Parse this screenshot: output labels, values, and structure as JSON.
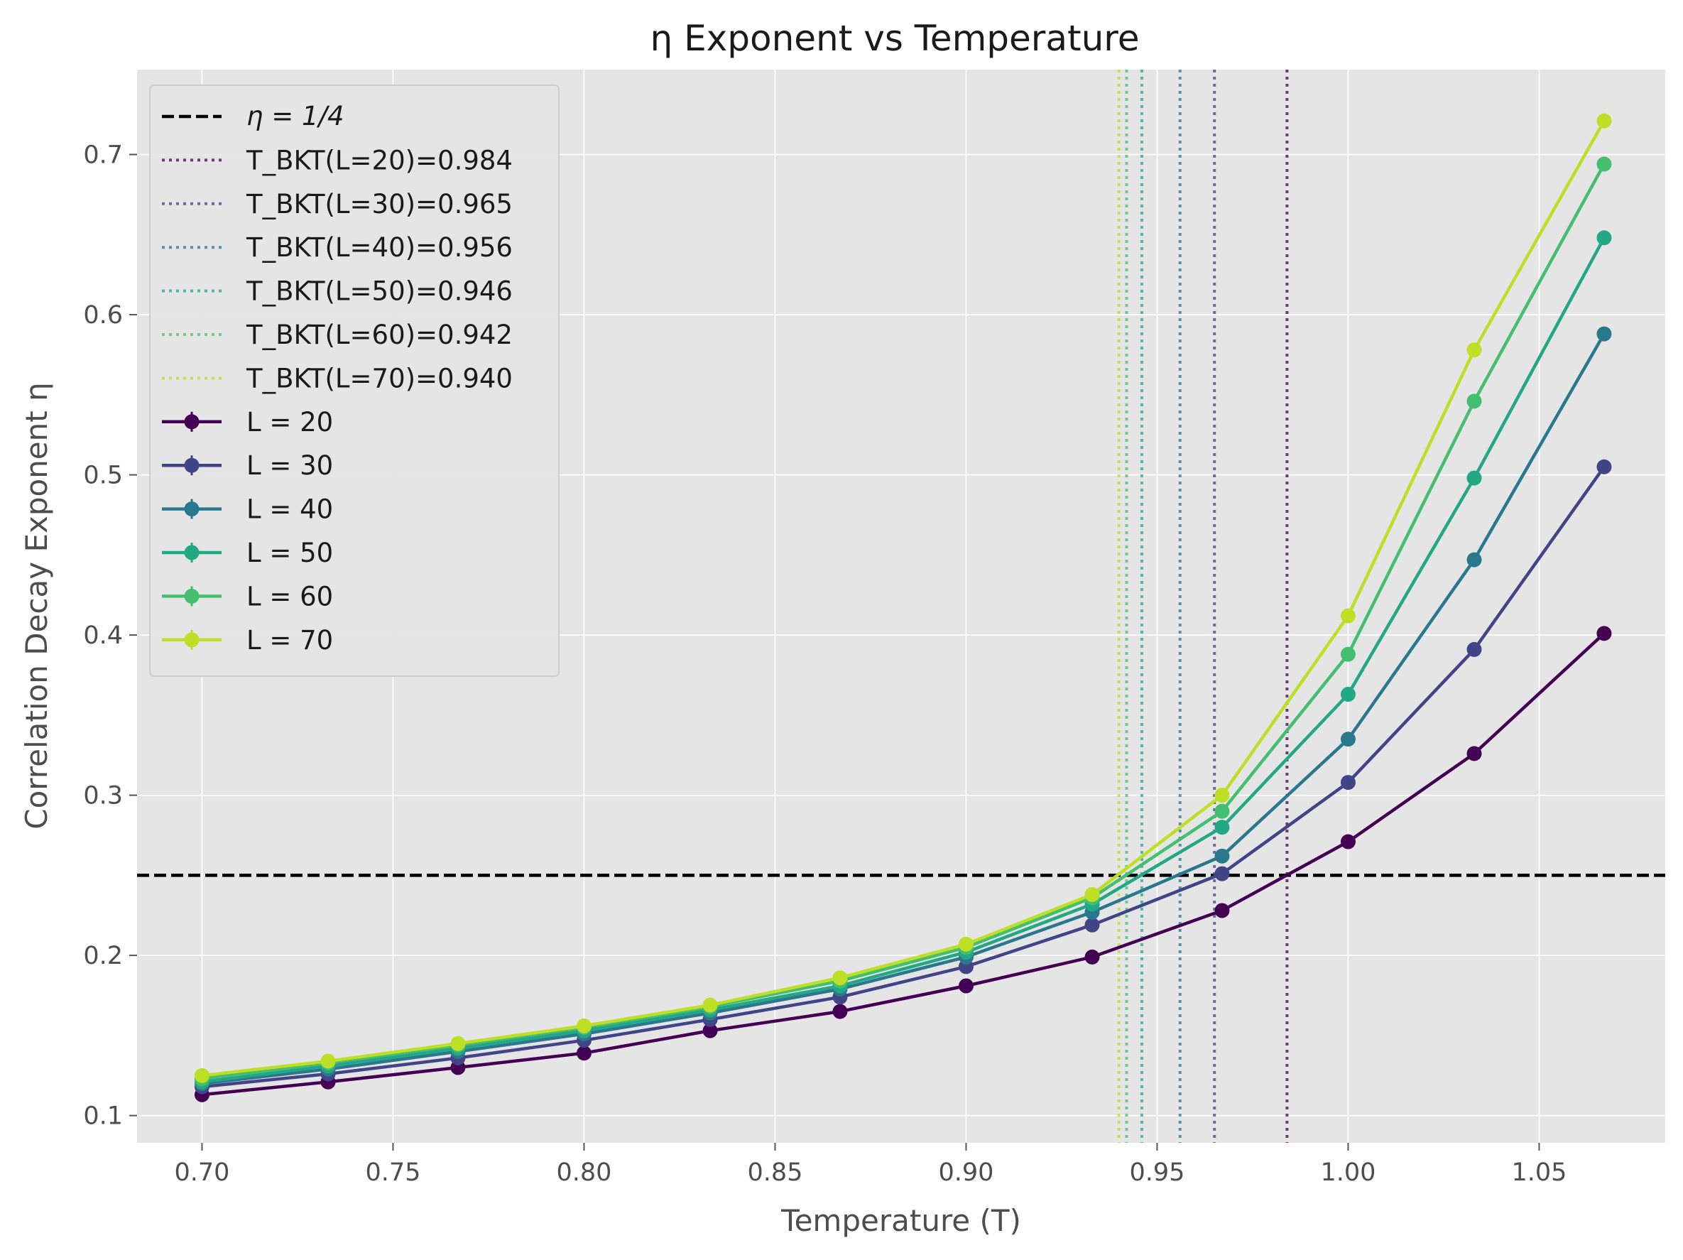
{
  "chart_data": {
    "type": "line",
    "title": "η Exponent vs Temperature",
    "xlabel": "Temperature (T)",
    "ylabel": "Correlation Decay Exponent η",
    "xlim": [
      0.683,
      1.083
    ],
    "ylim": [
      0.083,
      0.753
    ],
    "xticks": [
      0.7,
      0.75,
      0.8,
      0.85,
      0.9,
      0.95,
      1.0,
      1.05
    ],
    "xtick_labels": [
      "0.70",
      "0.75",
      "0.80",
      "0.85",
      "0.90",
      "0.95",
      "1.00",
      "1.05"
    ],
    "yticks": [
      0.1,
      0.2,
      0.3,
      0.4,
      0.5,
      0.6,
      0.7
    ],
    "ytick_labels": [
      "0.1",
      "0.2",
      "0.3",
      "0.4",
      "0.5",
      "0.6",
      "0.7"
    ],
    "grid": true,
    "legend_position": "top-left",
    "background": "#e5e5e5",
    "x": [
      0.7,
      0.733,
      0.767,
      0.8,
      0.833,
      0.867,
      0.9,
      0.933,
      0.967,
      1.0,
      1.033,
      1.067
    ],
    "series": [
      {
        "name": "L = 20",
        "color": "#440154",
        "values": [
          0.113,
          0.121,
          0.13,
          0.139,
          0.153,
          0.165,
          0.181,
          0.199,
          0.228,
          0.271,
          0.326,
          0.401
        ]
      },
      {
        "name": "L = 30",
        "color": "#414487",
        "values": [
          0.118,
          0.126,
          0.136,
          0.147,
          0.16,
          0.174,
          0.193,
          0.219,
          0.251,
          0.308,
          0.391,
          0.505
        ]
      },
      {
        "name": "L = 40",
        "color": "#2a788e",
        "values": [
          0.12,
          0.129,
          0.14,
          0.151,
          0.164,
          0.179,
          0.199,
          0.227,
          0.262,
          0.335,
          0.447,
          0.588
        ]
      },
      {
        "name": "L = 50",
        "color": "#22a884",
        "values": [
          0.121,
          0.131,
          0.142,
          0.153,
          0.166,
          0.181,
          0.202,
          0.232,
          0.28,
          0.363,
          0.498,
          0.648
        ]
      },
      {
        "name": "L = 60",
        "color": "#44bf70",
        "values": [
          0.123,
          0.133,
          0.144,
          0.155,
          0.168,
          0.184,
          0.205,
          0.236,
          0.29,
          0.388,
          0.546,
          0.694
        ]
      },
      {
        "name": "L = 70",
        "color": "#bddf26",
        "values": [
          0.125,
          0.134,
          0.145,
          0.156,
          0.169,
          0.186,
          0.207,
          0.238,
          0.3,
          0.412,
          0.578,
          0.721
        ]
      }
    ],
    "reference_lines": [
      {
        "name": "T_BKT(L=20)=0.984",
        "orientation": "vertical",
        "x": 0.984,
        "color": "#440154",
        "style": "dotted"
      },
      {
        "name": "T_BKT(L=30)=0.965",
        "orientation": "vertical",
        "x": 0.965,
        "color": "#414487",
        "style": "dotted"
      },
      {
        "name": "T_BKT(L=40)=0.956",
        "orientation": "vertical",
        "x": 0.956,
        "color": "#2a788e",
        "style": "dotted"
      },
      {
        "name": "T_BKT(L=50)=0.946",
        "orientation": "vertical",
        "x": 0.946,
        "color": "#22a884",
        "style": "dotted"
      },
      {
        "name": "T_BKT(L=60)=0.942",
        "orientation": "vertical",
        "x": 0.942,
        "color": "#44bf70",
        "style": "dotted"
      },
      {
        "name": "T_BKT(L=70)=0.940",
        "orientation": "vertical",
        "x": 0.94,
        "color": "#bddf26",
        "style": "dotted"
      }
    ],
    "hline": {
      "name": "η = 1/4",
      "y": 0.25,
      "color": "#000000",
      "style": "dashed"
    }
  }
}
